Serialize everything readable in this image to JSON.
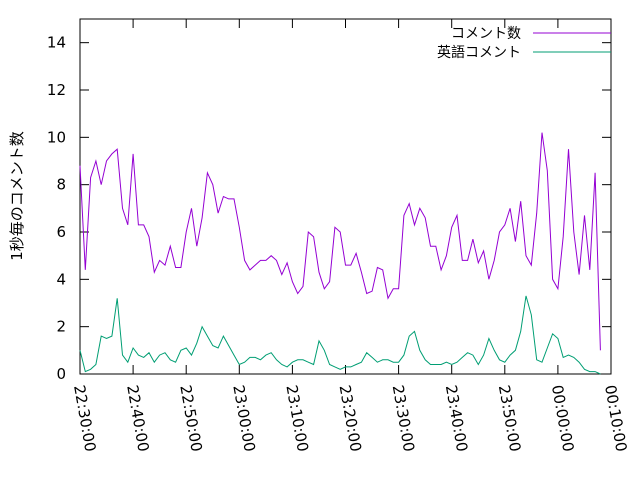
{
  "chart_data": {
    "type": "line",
    "ylabel": "1秒毎のコメント数",
    "xlabel": "",
    "ylim": [
      0,
      15
    ],
    "xlim_minutes": [
      0,
      100
    ],
    "yticks": [
      "0",
      "2",
      "4",
      "6",
      "8",
      "10",
      "12",
      "14"
    ],
    "xticks": [
      "22:30:00",
      "22:40:00",
      "22:50:00",
      "23:00:00",
      "23:10:00",
      "23:20:00",
      "23:30:00",
      "23:40:00",
      "23:50:00",
      "00:00:00",
      "00:10:00"
    ],
    "legend_position": "top-right",
    "grid": false,
    "series": [
      {
        "name": "コメント数",
        "color": "#9400d3",
        "x": [
          0,
          1,
          2,
          3,
          4,
          5,
          6,
          7,
          8,
          9,
          10,
          11,
          12,
          13,
          14,
          15,
          16,
          17,
          18,
          19,
          20,
          21,
          22,
          23,
          24,
          25,
          26,
          27,
          28,
          29,
          30,
          31,
          32,
          33,
          34,
          35,
          36,
          37,
          38,
          39,
          40,
          41,
          42,
          43,
          44,
          45,
          46,
          47,
          48,
          49,
          50,
          51,
          52,
          53,
          54,
          55,
          56,
          57,
          58,
          59,
          60,
          61,
          62,
          63,
          64,
          65,
          66,
          67,
          68,
          69,
          70,
          71,
          72,
          73,
          74,
          75,
          76,
          77,
          78,
          79,
          80,
          81,
          82,
          83,
          84,
          85,
          86,
          87,
          88,
          89,
          90,
          91,
          92,
          93,
          94,
          95,
          96,
          97,
          98
        ],
        "values": [
          8.8,
          4.4,
          8.3,
          9.0,
          8.0,
          9.0,
          9.3,
          9.5,
          7.0,
          6.3,
          9.3,
          6.3,
          6.3,
          5.8,
          4.3,
          4.8,
          4.6,
          5.4,
          4.5,
          4.5,
          6.0,
          7.0,
          5.4,
          6.6,
          8.5,
          8.0,
          6.8,
          7.5,
          7.4,
          7.4,
          6.2,
          4.8,
          4.4,
          4.6,
          4.8,
          4.8,
          5.0,
          4.8,
          4.2,
          4.7,
          3.9,
          3.4,
          3.7,
          6.0,
          5.8,
          4.3,
          3.6,
          3.9,
          6.2,
          6.0,
          4.6,
          4.6,
          5.1,
          4.3,
          3.4,
          3.5,
          4.5,
          4.4,
          3.2,
          3.6,
          3.6,
          6.7,
          7.2,
          6.3,
          7.0,
          6.6,
          5.4,
          5.4,
          4.4,
          5.0,
          6.2,
          6.7,
          4.8,
          4.8,
          5.7,
          4.7,
          5.2,
          4.0,
          4.8,
          6.0,
          6.3,
          7.0,
          5.6,
          7.3,
          5.0,
          4.6,
          6.8,
          10.2,
          8.6,
          4.0,
          3.6,
          5.8,
          9.5,
          6.0,
          4.2,
          6.7,
          4.4,
          8.5,
          1.0
        ]
      },
      {
        "name": "英語コメント",
        "color": "#009e73",
        "x": [
          0,
          1,
          2,
          3,
          4,
          5,
          6,
          7,
          8,
          9,
          10,
          11,
          12,
          13,
          14,
          15,
          16,
          17,
          18,
          19,
          20,
          21,
          22,
          23,
          24,
          25,
          26,
          27,
          28,
          29,
          30,
          31,
          32,
          33,
          34,
          35,
          36,
          37,
          38,
          39,
          40,
          41,
          42,
          43,
          44,
          45,
          46,
          47,
          48,
          49,
          50,
          51,
          52,
          53,
          54,
          55,
          56,
          57,
          58,
          59,
          60,
          61,
          62,
          63,
          64,
          65,
          66,
          67,
          68,
          69,
          70,
          71,
          72,
          73,
          74,
          75,
          76,
          77,
          78,
          79,
          80,
          81,
          82,
          83,
          84,
          85,
          86,
          87,
          88,
          89,
          90,
          91,
          92,
          93,
          94,
          95,
          96,
          97,
          98
        ],
        "values": [
          1.0,
          0.1,
          0.2,
          0.4,
          1.6,
          1.5,
          1.6,
          3.2,
          0.8,
          0.5,
          1.1,
          0.8,
          0.7,
          0.9,
          0.5,
          0.8,
          0.9,
          0.6,
          0.5,
          1.0,
          1.1,
          0.8,
          1.3,
          2.0,
          1.6,
          1.2,
          1.1,
          1.6,
          1.2,
          0.8,
          0.4,
          0.5,
          0.7,
          0.7,
          0.6,
          0.8,
          0.9,
          0.6,
          0.4,
          0.3,
          0.5,
          0.6,
          0.6,
          0.5,
          0.4,
          1.4,
          1.0,
          0.4,
          0.3,
          0.2,
          0.3,
          0.3,
          0.4,
          0.5,
          0.9,
          0.7,
          0.5,
          0.6,
          0.6,
          0.5,
          0.5,
          0.8,
          1.6,
          1.8,
          1.0,
          0.6,
          0.4,
          0.4,
          0.4,
          0.5,
          0.4,
          0.5,
          0.7,
          0.9,
          0.8,
          0.4,
          0.8,
          1.5,
          1.0,
          0.6,
          0.5,
          0.8,
          1.0,
          1.8,
          3.3,
          2.5,
          0.6,
          0.5,
          1.1,
          1.7,
          1.5,
          0.7,
          0.8,
          0.7,
          0.5,
          0.2,
          0.1,
          0.1,
          0.0
        ]
      }
    ]
  }
}
